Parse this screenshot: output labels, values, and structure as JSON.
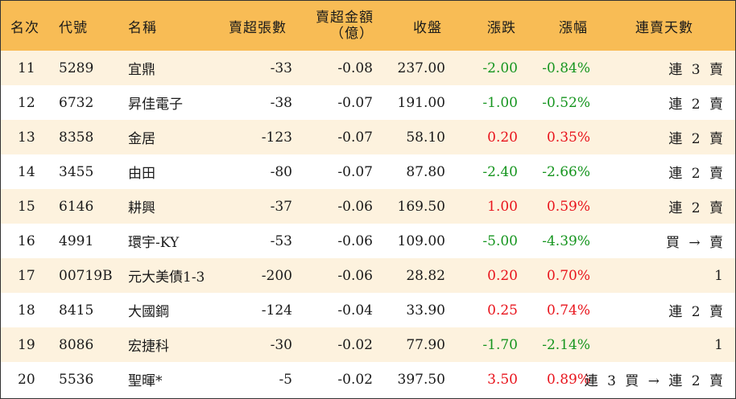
{
  "headers": {
    "rank": "名次",
    "code": "代號",
    "name": "名稱",
    "sell_lots": "賣超張數",
    "sell_amount_line1": "賣超金額",
    "sell_amount_line2": "（億）",
    "close": "收盤",
    "change": "漲跌",
    "pct": "漲幅",
    "days": "連賣天數"
  },
  "rows": [
    {
      "rank": "11",
      "code": "5289",
      "name": "宜鼎",
      "lots": "-33",
      "amount": "-0.08",
      "close": "237.00",
      "change": "-2.00",
      "pct": "-0.84%",
      "dir": "down",
      "days": "連 3 賣"
    },
    {
      "rank": "12",
      "code": "6732",
      "name": "昇佳電子",
      "lots": "-38",
      "amount": "-0.07",
      "close": "191.00",
      "change": "-1.00",
      "pct": "-0.52%",
      "dir": "down",
      "days": "連 2 賣"
    },
    {
      "rank": "13",
      "code": "8358",
      "name": "金居",
      "lots": "-123",
      "amount": "-0.07",
      "close": "58.10",
      "change": "0.20",
      "pct": "0.35%",
      "dir": "up",
      "days": "連 2 賣"
    },
    {
      "rank": "14",
      "code": "3455",
      "name": "由田",
      "lots": "-80",
      "amount": "-0.07",
      "close": "87.80",
      "change": "-2.40",
      "pct": "-2.66%",
      "dir": "down",
      "days": "連 2 賣"
    },
    {
      "rank": "15",
      "code": "6146",
      "name": "耕興",
      "lots": "-37",
      "amount": "-0.06",
      "close": "169.50",
      "change": "1.00",
      "pct": "0.59%",
      "dir": "up",
      "days": "連 2 賣"
    },
    {
      "rank": "16",
      "code": "4991",
      "name": "環宇-KY",
      "lots": "-53",
      "amount": "-0.06",
      "close": "109.00",
      "change": "-5.00",
      "pct": "-4.39%",
      "dir": "down",
      "days": "買 → 賣"
    },
    {
      "rank": "17",
      "code": "00719B",
      "name": "元大美債1-3",
      "lots": "-200",
      "amount": "-0.06",
      "close": "28.82",
      "change": "0.20",
      "pct": "0.70%",
      "dir": "up",
      "days": "1"
    },
    {
      "rank": "18",
      "code": "8415",
      "name": "大國鋼",
      "lots": "-124",
      "amount": "-0.04",
      "close": "33.90",
      "change": "0.25",
      "pct": "0.74%",
      "dir": "up",
      "days": "連 2 賣"
    },
    {
      "rank": "19",
      "code": "8086",
      "name": "宏捷科",
      "lots": "-30",
      "amount": "-0.02",
      "close": "77.90",
      "change": "-1.70",
      "pct": "-2.14%",
      "dir": "down",
      "days": "1"
    },
    {
      "rank": "20",
      "code": "5536",
      "name": "聖暉*",
      "lots": "-5",
      "amount": "-0.02",
      "close": "397.50",
      "change": "3.50",
      "pct": "0.89%",
      "dir": "up",
      "days": "連 3 買 → 連 2 賣"
    }
  ],
  "colors": {
    "header_bg": "#f8bc55",
    "stripe": "#fdf2de",
    "up": "#e8141c",
    "down": "#16951f"
  }
}
